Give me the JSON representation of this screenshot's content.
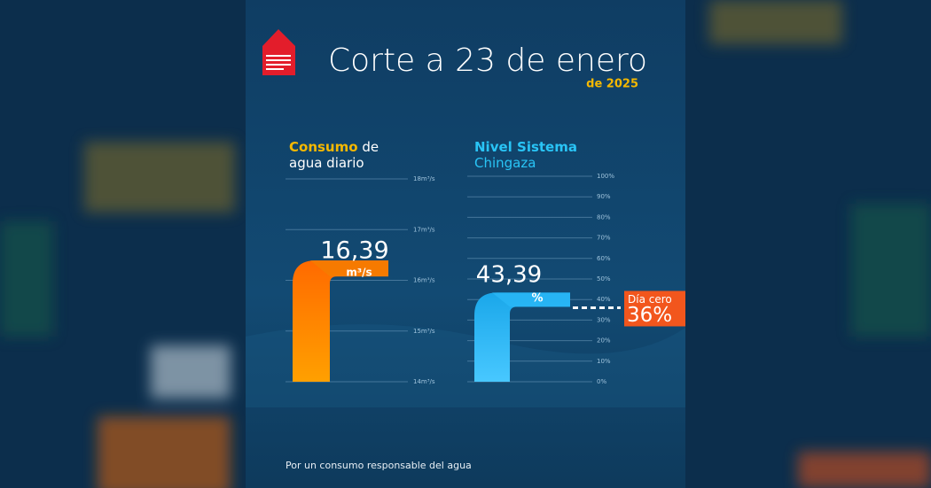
{
  "title": "Corte a 23 de enero",
  "subtitle": "de 2025",
  "footer": "Por un consumo responsable del agua",
  "chart_data": [
    {
      "type": "pipe",
      "title_bold": "Consumo",
      "title_rest": "de agua diario",
      "values": [
        16.39
      ],
      "value_labels": [
        "16,39"
      ],
      "unit": "m³/s",
      "color": "#f57c00",
      "ylim": [
        14,
        18
      ],
      "yticks": [
        {
          "value": 14,
          "label": "14m³/s"
        },
        {
          "value": 15,
          "label": "15m³/s"
        },
        {
          "value": 16,
          "label": "16m³/s"
        },
        {
          "value": 17,
          "label": "17m³/s"
        },
        {
          "value": 18,
          "label": "18m³/s"
        }
      ],
      "grid": true
    },
    {
      "type": "pipe",
      "title_bold": "Nivel Sistema",
      "title_rest": "Chingaza",
      "values": [
        43.39
      ],
      "value_labels": [
        "43,39"
      ],
      "unit": "%",
      "color": "#29b6f6",
      "ylim": [
        0,
        100
      ],
      "yticks": [
        {
          "value": 0,
          "label": "0%"
        },
        {
          "value": 10,
          "label": "10%"
        },
        {
          "value": 20,
          "label": "20%"
        },
        {
          "value": 30,
          "label": "30%"
        },
        {
          "value": 40,
          "label": "40%"
        },
        {
          "value": 50,
          "label": "50%"
        },
        {
          "value": 60,
          "label": "60%"
        },
        {
          "value": 70,
          "label": "70%"
        },
        {
          "value": 80,
          "label": "80%"
        },
        {
          "value": 90,
          "label": "90%"
        },
        {
          "value": 100,
          "label": "100%"
        }
      ],
      "grid": true,
      "annotation": {
        "label": "Día cero",
        "value": 36,
        "value_label": "36%",
        "color": "#f2561d"
      }
    }
  ]
}
